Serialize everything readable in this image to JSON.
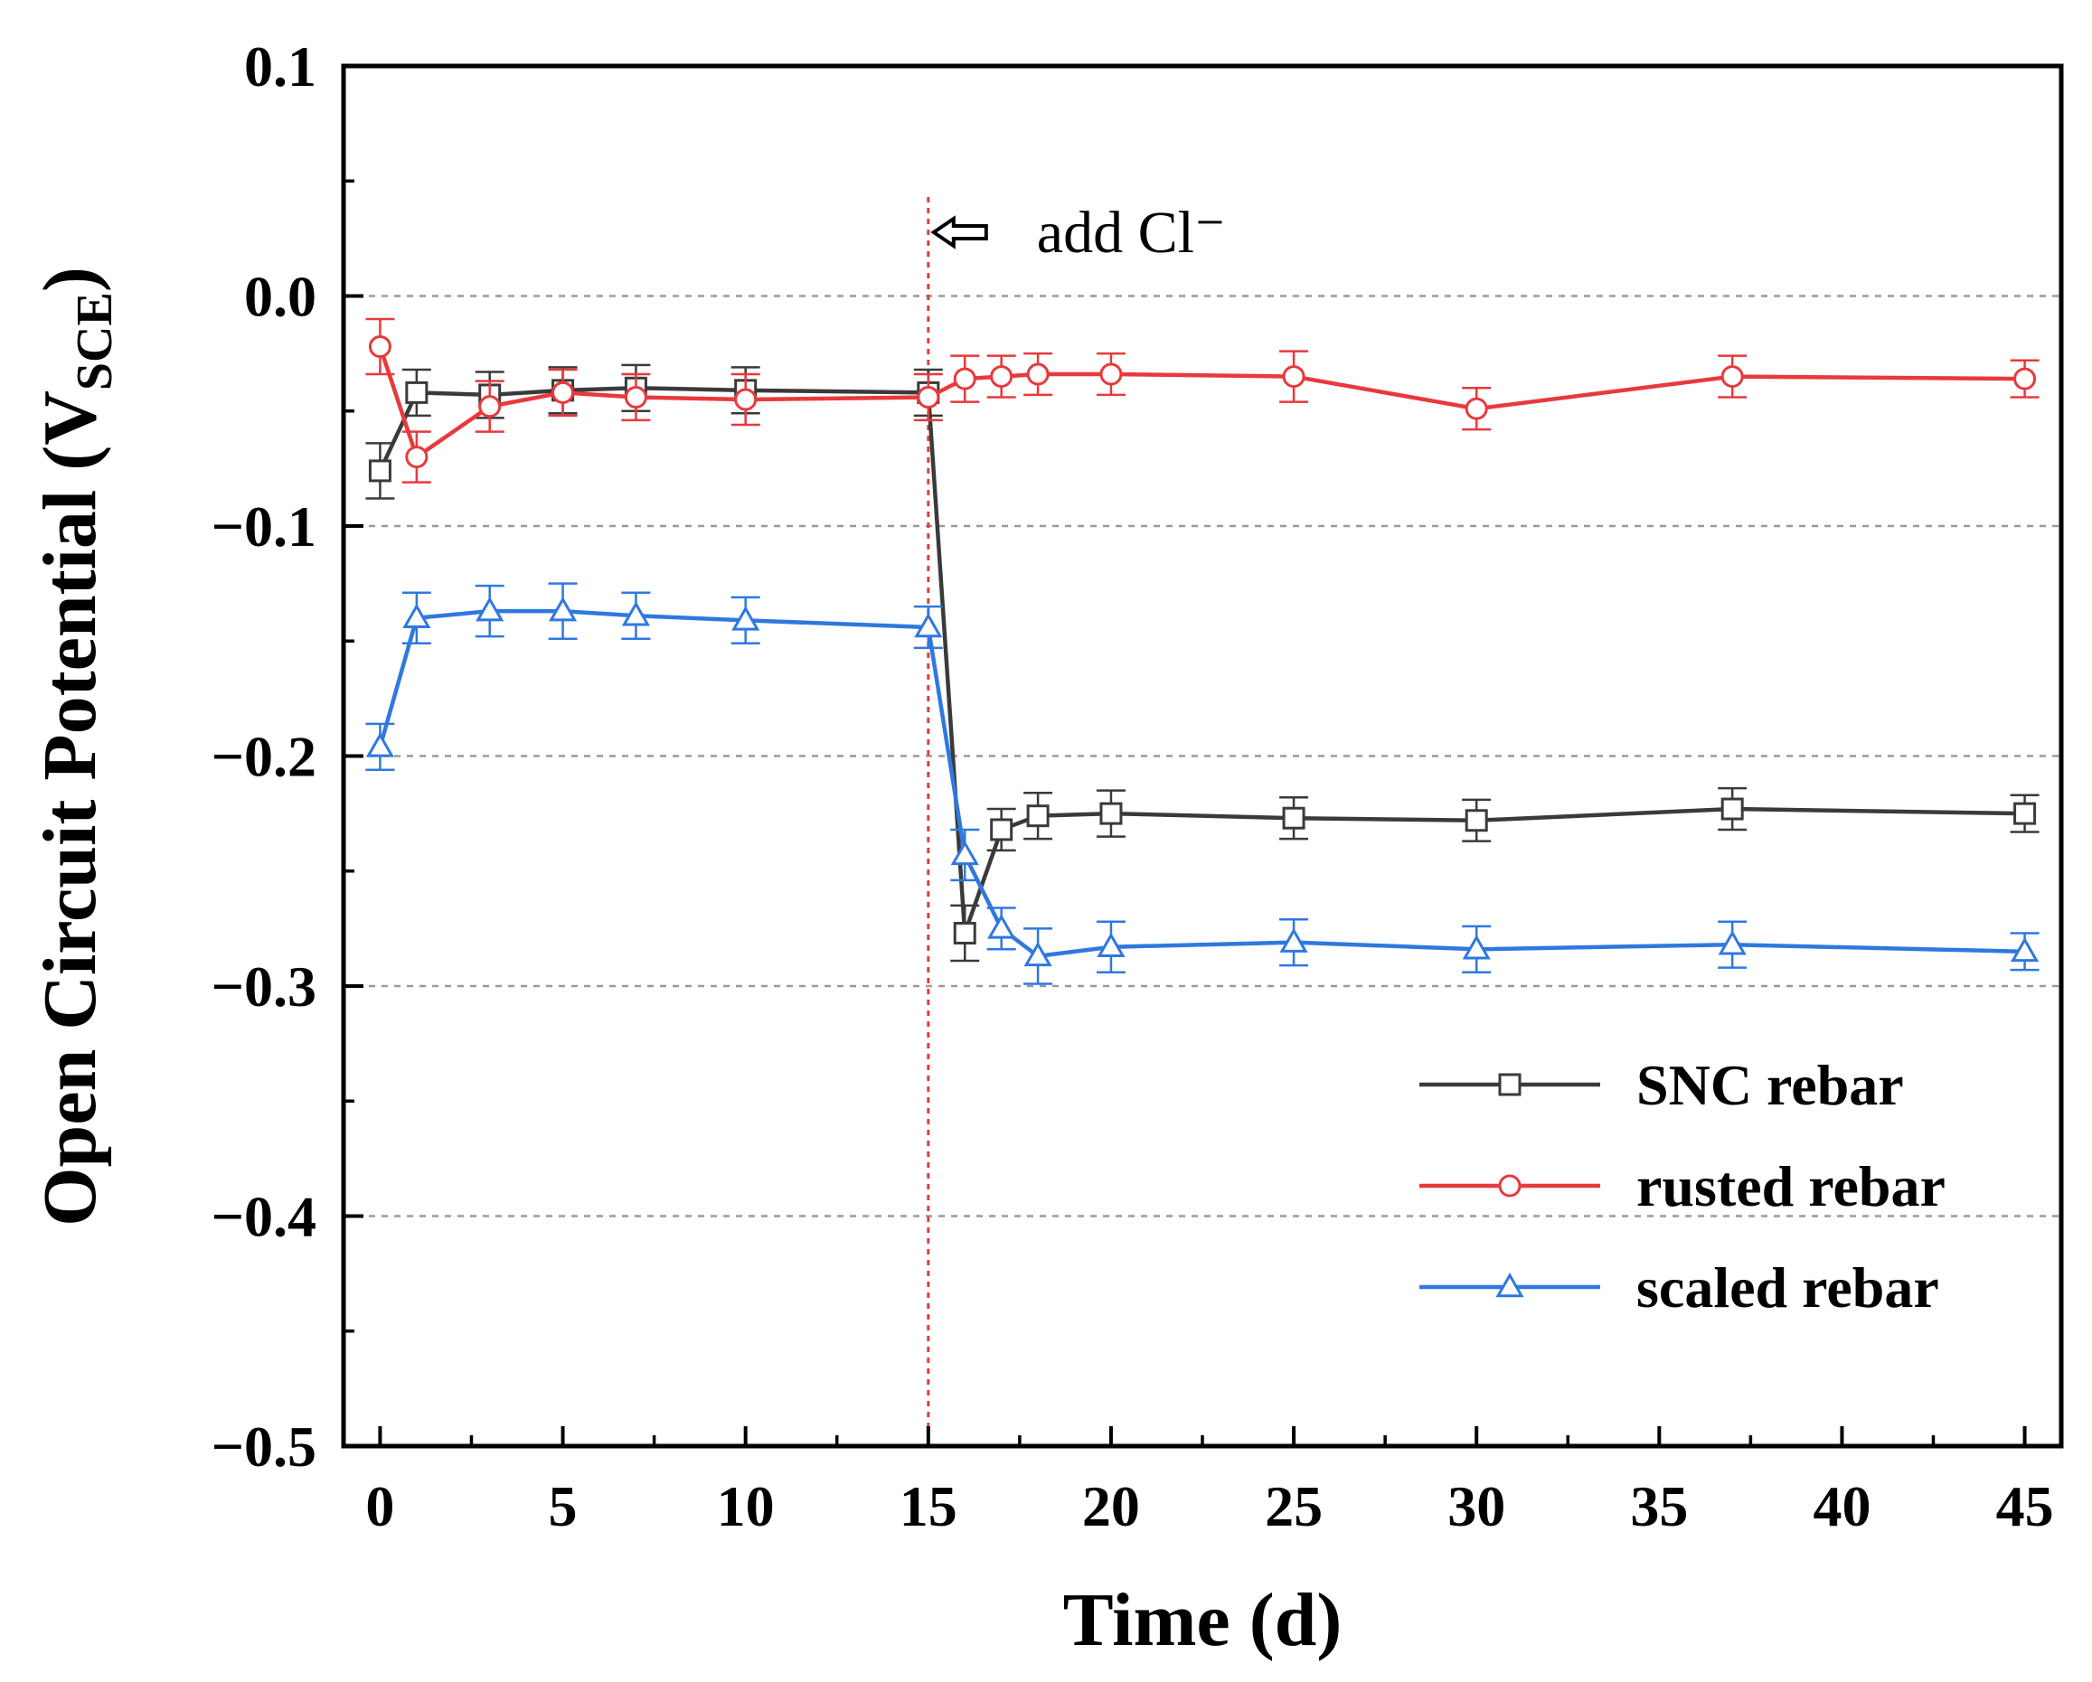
{
  "chart_data": {
    "type": "line",
    "title": "",
    "xlabel": "Time (d)",
    "ylabel": "Open Circuit Potential (V",
    "ylabel_sub": "SCE",
    "ylabel_close": ")",
    "xlim": [
      -1,
      46
    ],
    "ylim": [
      -0.5,
      0.1
    ],
    "xticks": [
      0,
      5,
      10,
      15,
      20,
      25,
      30,
      35,
      40,
      45
    ],
    "xtick_labels": [
      "0",
      "5",
      "10",
      "15",
      "20",
      "25",
      "30",
      "35",
      "40",
      "45"
    ],
    "yticks": [
      0.1,
      0.0,
      -0.1,
      -0.2,
      -0.3,
      -0.4,
      -0.5
    ],
    "ytick_labels": [
      "0.1",
      "0.0",
      "−0.1",
      "−0.2",
      "−0.3",
      "−0.4",
      "−0.5"
    ],
    "grid": "horizontal dashed at 0.0, -0.1, -0.2, -0.3, -0.4",
    "legend_position": "bottom-right",
    "annotation": {
      "text": "add Cl⁻",
      "x": 15,
      "marker": "vertical dotted line with left arrow"
    },
    "series": [
      {
        "name": "SNC rebar",
        "color": "#3a3a3a",
        "marker": "square",
        "x": [
          0,
          1,
          3,
          5,
          7,
          10,
          15,
          16,
          17,
          18,
          20,
          25,
          30,
          37,
          45
        ],
        "y": [
          -0.076,
          -0.042,
          -0.043,
          -0.041,
          -0.04,
          -0.041,
          -0.042,
          -0.277,
          -0.232,
          -0.226,
          -0.225,
          -0.227,
          -0.228,
          -0.223,
          -0.225
        ],
        "err": [
          0.012,
          0.01,
          0.01,
          0.01,
          0.01,
          0.01,
          0.01,
          0.012,
          0.009,
          0.01,
          0.01,
          0.009,
          0.009,
          0.009,
          0.008
        ]
      },
      {
        "name": "rusted rebar",
        "color": "#e8393c",
        "marker": "circle",
        "x": [
          0,
          1,
          3,
          5,
          7,
          10,
          15,
          16,
          17,
          18,
          20,
          25,
          30,
          37,
          45
        ],
        "y": [
          -0.022,
          -0.07,
          -0.048,
          -0.042,
          -0.044,
          -0.045,
          -0.044,
          -0.036,
          -0.035,
          -0.034,
          -0.034,
          -0.035,
          -0.049,
          -0.035,
          -0.036
        ],
        "err": [
          0.012,
          0.011,
          0.011,
          0.01,
          0.01,
          0.011,
          0.01,
          0.01,
          0.009,
          0.009,
          0.009,
          0.011,
          0.009,
          0.009,
          0.008
        ]
      },
      {
        "name": "scaled rebar",
        "color": "#2f78e0",
        "marker": "triangle",
        "x": [
          0,
          1,
          3,
          5,
          7,
          10,
          15,
          16,
          17,
          18,
          20,
          25,
          30,
          37,
          45
        ],
        "y": [
          -0.196,
          -0.14,
          -0.137,
          -0.137,
          -0.139,
          -0.141,
          -0.144,
          -0.243,
          -0.275,
          -0.287,
          -0.283,
          -0.281,
          -0.284,
          -0.282,
          -0.285
        ],
        "err": [
          0.01,
          0.011,
          0.011,
          0.012,
          0.01,
          0.01,
          0.009,
          0.011,
          0.009,
          0.012,
          0.011,
          0.01,
          0.01,
          0.01,
          0.008
        ]
      }
    ]
  }
}
